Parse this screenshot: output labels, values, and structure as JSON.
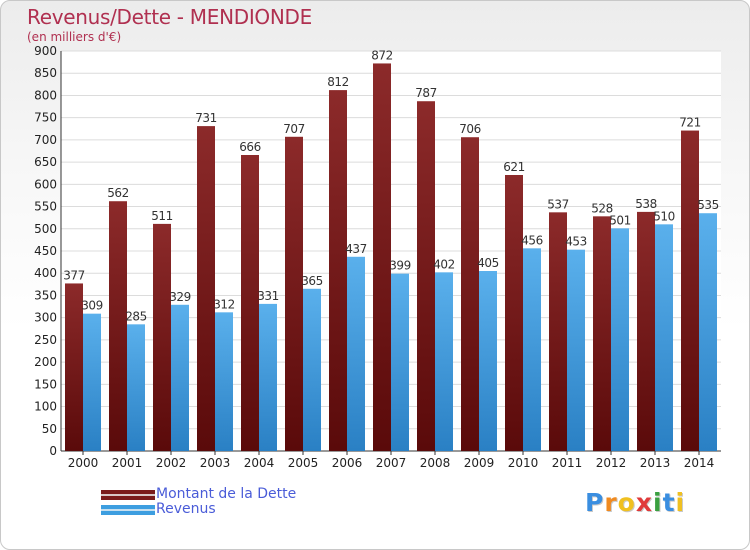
{
  "chart_data": {
    "type": "bar",
    "title": "Revenus/Dette - MENDIONDE",
    "subtitle": "(en milliers d'€)",
    "categories": [
      "2000",
      "2001",
      "2002",
      "2003",
      "2004",
      "2005",
      "2006",
      "2007",
      "2008",
      "2009",
      "2010",
      "2011",
      "2012",
      "2013",
      "2014"
    ],
    "series": [
      {
        "name": "Montant de la Dette",
        "color": "#7a1c1c",
        "values": [
          377,
          562,
          511,
          731,
          666,
          707,
          812,
          872,
          787,
          706,
          621,
          537,
          528,
          538,
          721
        ]
      },
      {
        "name": "Revenus",
        "color": "#3d9ee0",
        "values": [
          309,
          285,
          329,
          312,
          331,
          365,
          437,
          399,
          402,
          405,
          456,
          453,
          501,
          510,
          535
        ]
      }
    ],
    "ylim": [
      0,
      900
    ],
    "yticks": [
      0,
      50,
      100,
      150,
      200,
      250,
      300,
      350,
      400,
      450,
      500,
      550,
      600,
      650,
      700,
      750,
      800,
      850,
      900
    ],
    "grid": true,
    "legend_position": "bottom-left"
  },
  "legend": {
    "debt_label": "Montant de la Dette",
    "revenue_label": "Revenus"
  },
  "logo": {
    "letters": [
      "P",
      "r",
      "o",
      "x",
      "i",
      "t",
      "i"
    ],
    "colors": [
      "#3a8ee0",
      "#f08a20",
      "#f0c020",
      "#e03a3a",
      "#3aa040",
      "#3a8ee0",
      "#f0c020"
    ]
  }
}
